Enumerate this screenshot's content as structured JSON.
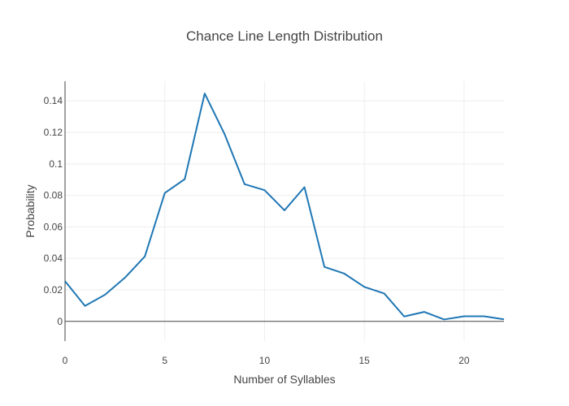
{
  "chart_data": {
    "type": "line",
    "title": "Chance Line Length Distribution",
    "xlabel": "Number of Syllables",
    "ylabel": "Probability",
    "xlim": [
      0,
      22
    ],
    "ylim": [
      -0.0125,
      0.1525
    ],
    "x_ticks": [
      0,
      5,
      10,
      15,
      20
    ],
    "x_tick_labels": [
      "0",
      "5",
      "10",
      "15",
      "20"
    ],
    "y_ticks": [
      0,
      0.02,
      0.04,
      0.06,
      0.08,
      0.1,
      0.12,
      0.14
    ],
    "y_tick_labels": [
      "0",
      "0.02",
      "0.04",
      "0.06",
      "0.08",
      "0.1",
      "0.12",
      "0.14"
    ],
    "grid": true,
    "series": [
      {
        "color": "#1f77b4",
        "x": [
          0,
          1,
          2,
          3,
          4,
          5,
          6,
          7,
          8,
          9,
          10,
          11,
          12,
          13,
          14,
          15,
          16,
          17,
          18,
          19,
          20,
          21,
          22
        ],
        "y": [
          0.0255,
          0.0098,
          0.0169,
          0.0277,
          0.0412,
          0.0815,
          0.0903,
          0.1447,
          0.1188,
          0.0871,
          0.0833,
          0.0705,
          0.0852,
          0.0346,
          0.0303,
          0.0219,
          0.0177,
          0.0031,
          0.006,
          0.0012,
          0.0032,
          0.0032,
          0.0013
        ]
      }
    ]
  }
}
